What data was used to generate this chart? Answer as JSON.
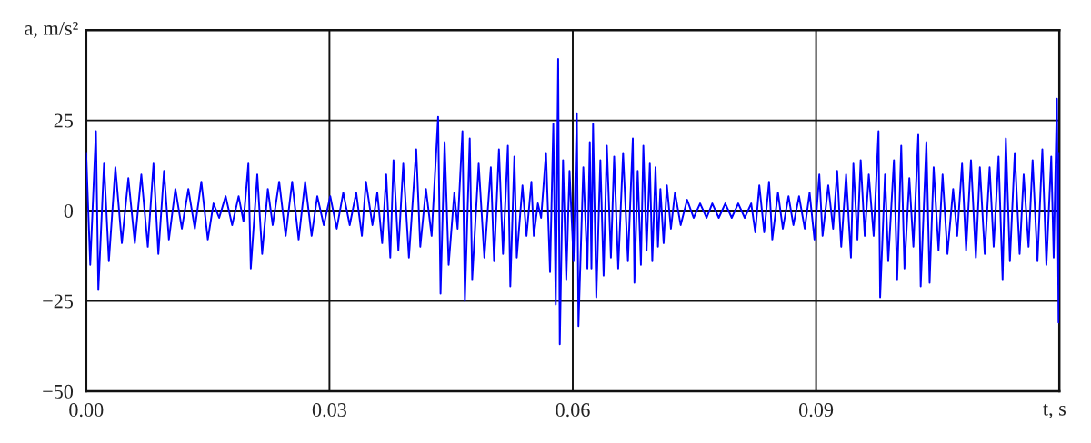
{
  "chart_data": {
    "type": "line",
    "xlabel": "t, s",
    "ylabel": "a, m/s²",
    "xlim": [
      0,
      0.12
    ],
    "ylim": [
      -50,
      50
    ],
    "xticks": [
      {
        "value": 0,
        "label": "0.00"
      },
      {
        "value": 0.03,
        "label": "0.03"
      },
      {
        "value": 0.06,
        "label": "0.06"
      },
      {
        "value": 0.09,
        "label": "0.09"
      }
    ],
    "yticks": [
      {
        "value": -50,
        "label": "−50"
      },
      {
        "value": -25,
        "label": "−25"
      },
      0,
      25
    ],
    "grid": true,
    "line_style": "solid",
    "x": [
      0.0,
      0.0005,
      0.0012,
      0.0015,
      0.0022,
      0.0028,
      0.0036,
      0.0044,
      0.0052,
      0.006,
      0.0068,
      0.0076,
      0.0083,
      0.0089,
      0.0096,
      0.0102,
      0.011,
      0.0118,
      0.0126,
      0.0134,
      0.0142,
      0.015,
      0.0157,
      0.0164,
      0.0172,
      0.018,
      0.0188,
      0.0194,
      0.02,
      0.0203,
      0.0211,
      0.0217,
      0.0224,
      0.023,
      0.0238,
      0.0246,
      0.0254,
      0.0262,
      0.027,
      0.0278,
      0.0285,
      0.0293,
      0.0301,
      0.0309,
      0.0317,
      0.0325,
      0.0333,
      0.034,
      0.0345,
      0.0353,
      0.0359,
      0.0365,
      0.037,
      0.0375,
      0.0379,
      0.0385,
      0.0391,
      0.0398,
      0.0407,
      0.0412,
      0.0419,
      0.0426,
      0.0434,
      0.0437,
      0.0442,
      0.0447,
      0.0454,
      0.0458,
      0.0464,
      0.0467,
      0.0473,
      0.0476,
      0.0484,
      0.0491,
      0.0499,
      0.0503,
      0.0509,
      0.0514,
      0.052,
      0.0523,
      0.0528,
      0.0531,
      0.0538,
      0.0543,
      0.0549,
      0.0552,
      0.0557,
      0.0561,
      0.0567,
      0.0572,
      0.0576,
      0.0579,
      0.0582,
      0.0584,
      0.0588,
      0.0592,
      0.0596,
      0.0601,
      0.0605,
      0.0607,
      0.0613,
      0.0618,
      0.0621,
      0.0623,
      0.0625,
      0.0629,
      0.0634,
      0.0638,
      0.0642,
      0.0647,
      0.0651,
      0.0656,
      0.0662,
      0.0668,
      0.0674,
      0.0676,
      0.068,
      0.0684,
      0.0687,
      0.0691,
      0.0695,
      0.0698,
      0.0702,
      0.0705,
      0.0708,
      0.0712,
      0.0716,
      0.0721,
      0.0726,
      0.0733,
      0.0741,
      0.0749,
      0.0757,
      0.0765,
      0.0772,
      0.078,
      0.0788,
      0.0796,
      0.0804,
      0.0812,
      0.082,
      0.0825,
      0.083,
      0.0836,
      0.0842,
      0.0846,
      0.0853,
      0.0859,
      0.0866,
      0.0872,
      0.0879,
      0.0886,
      0.0892,
      0.0898,
      0.0904,
      0.0908,
      0.0915,
      0.0921,
      0.0926,
      0.0931,
      0.0937,
      0.0943,
      0.0946,
      0.0951,
      0.0955,
      0.096,
      0.0965,
      0.0971,
      0.0977,
      0.0979,
      0.0985,
      0.0989,
      0.0996,
      0.1,
      0.1005,
      0.1009,
      0.1015,
      0.102,
      0.1026,
      0.1029,
      0.1036,
      0.104,
      0.1045,
      0.1051,
      0.1056,
      0.1062,
      0.1069,
      0.1074,
      0.108,
      0.1085,
      0.1091,
      0.1097,
      0.1102,
      0.1108,
      0.1114,
      0.1119,
      0.1125,
      0.113,
      0.1134,
      0.1139,
      0.1145,
      0.1151,
      0.1156,
      0.1162,
      0.1167,
      0.1173,
      0.1179,
      0.1184,
      0.119,
      0.1193,
      0.1197,
      0.1199,
      0.12
    ],
    "series": [
      {
        "color": "#0000ff",
        "values": [
          16,
          -15,
          22,
          -22,
          13,
          -14,
          12,
          -9,
          9,
          -9,
          10,
          -10,
          13,
          -12,
          11,
          -8,
          6,
          -5,
          6,
          -5,
          8,
          -8,
          2,
          -2,
          4,
          -4,
          4,
          -3,
          13,
          -16,
          10,
          -12,
          6,
          -4,
          8,
          -7,
          8,
          -8,
          8,
          -7,
          4,
          -4,
          4,
          -5,
          5,
          -4,
          5,
          -7,
          8,
          -4,
          5,
          -9,
          10,
          -13,
          14,
          -11,
          13,
          -13,
          17,
          -10,
          6,
          -7,
          26,
          -23,
          19,
          -15,
          5,
          -5,
          22,
          -25,
          20,
          -19,
          13,
          -13,
          12,
          -14,
          17,
          -12,
          18,
          -21,
          15,
          -13,
          7,
          -7,
          8,
          -7,
          2,
          -2,
          16,
          -17,
          24,
          -26,
          42,
          -37,
          14,
          -19,
          11,
          -14,
          27,
          -32,
          12,
          -16,
          19,
          -16,
          24,
          -24,
          14,
          -18,
          18,
          -13,
          15,
          -16,
          16,
          -14,
          20,
          -20,
          11,
          -15,
          18,
          -11,
          13,
          -14,
          12,
          -10,
          6,
          -9,
          7,
          -5,
          5,
          -4,
          3,
          -2,
          2,
          -2,
          2,
          -2,
          2,
          -2,
          2,
          -2,
          2,
          -6,
          7,
          -6,
          8,
          -8,
          5,
          -5,
          4,
          -4,
          4,
          -5,
          5,
          -8,
          10,
          -7,
          7,
          -5,
          11,
          -10,
          10,
          -13,
          13,
          -8,
          14,
          -7,
          10,
          -7,
          22,
          -24,
          10,
          -14,
          14,
          -19,
          18,
          -16,
          9,
          -10,
          21,
          -21,
          19,
          -20,
          12,
          -11,
          10,
          -12,
          6,
          -7,
          13,
          -11,
          14,
          -13,
          12,
          -12,
          12,
          -10,
          15,
          -19,
          20,
          -14,
          16,
          -12,
          10,
          -10,
          14,
          -14,
          17,
          -15,
          15,
          -13,
          31,
          -31,
          16
        ]
      }
    ]
  }
}
